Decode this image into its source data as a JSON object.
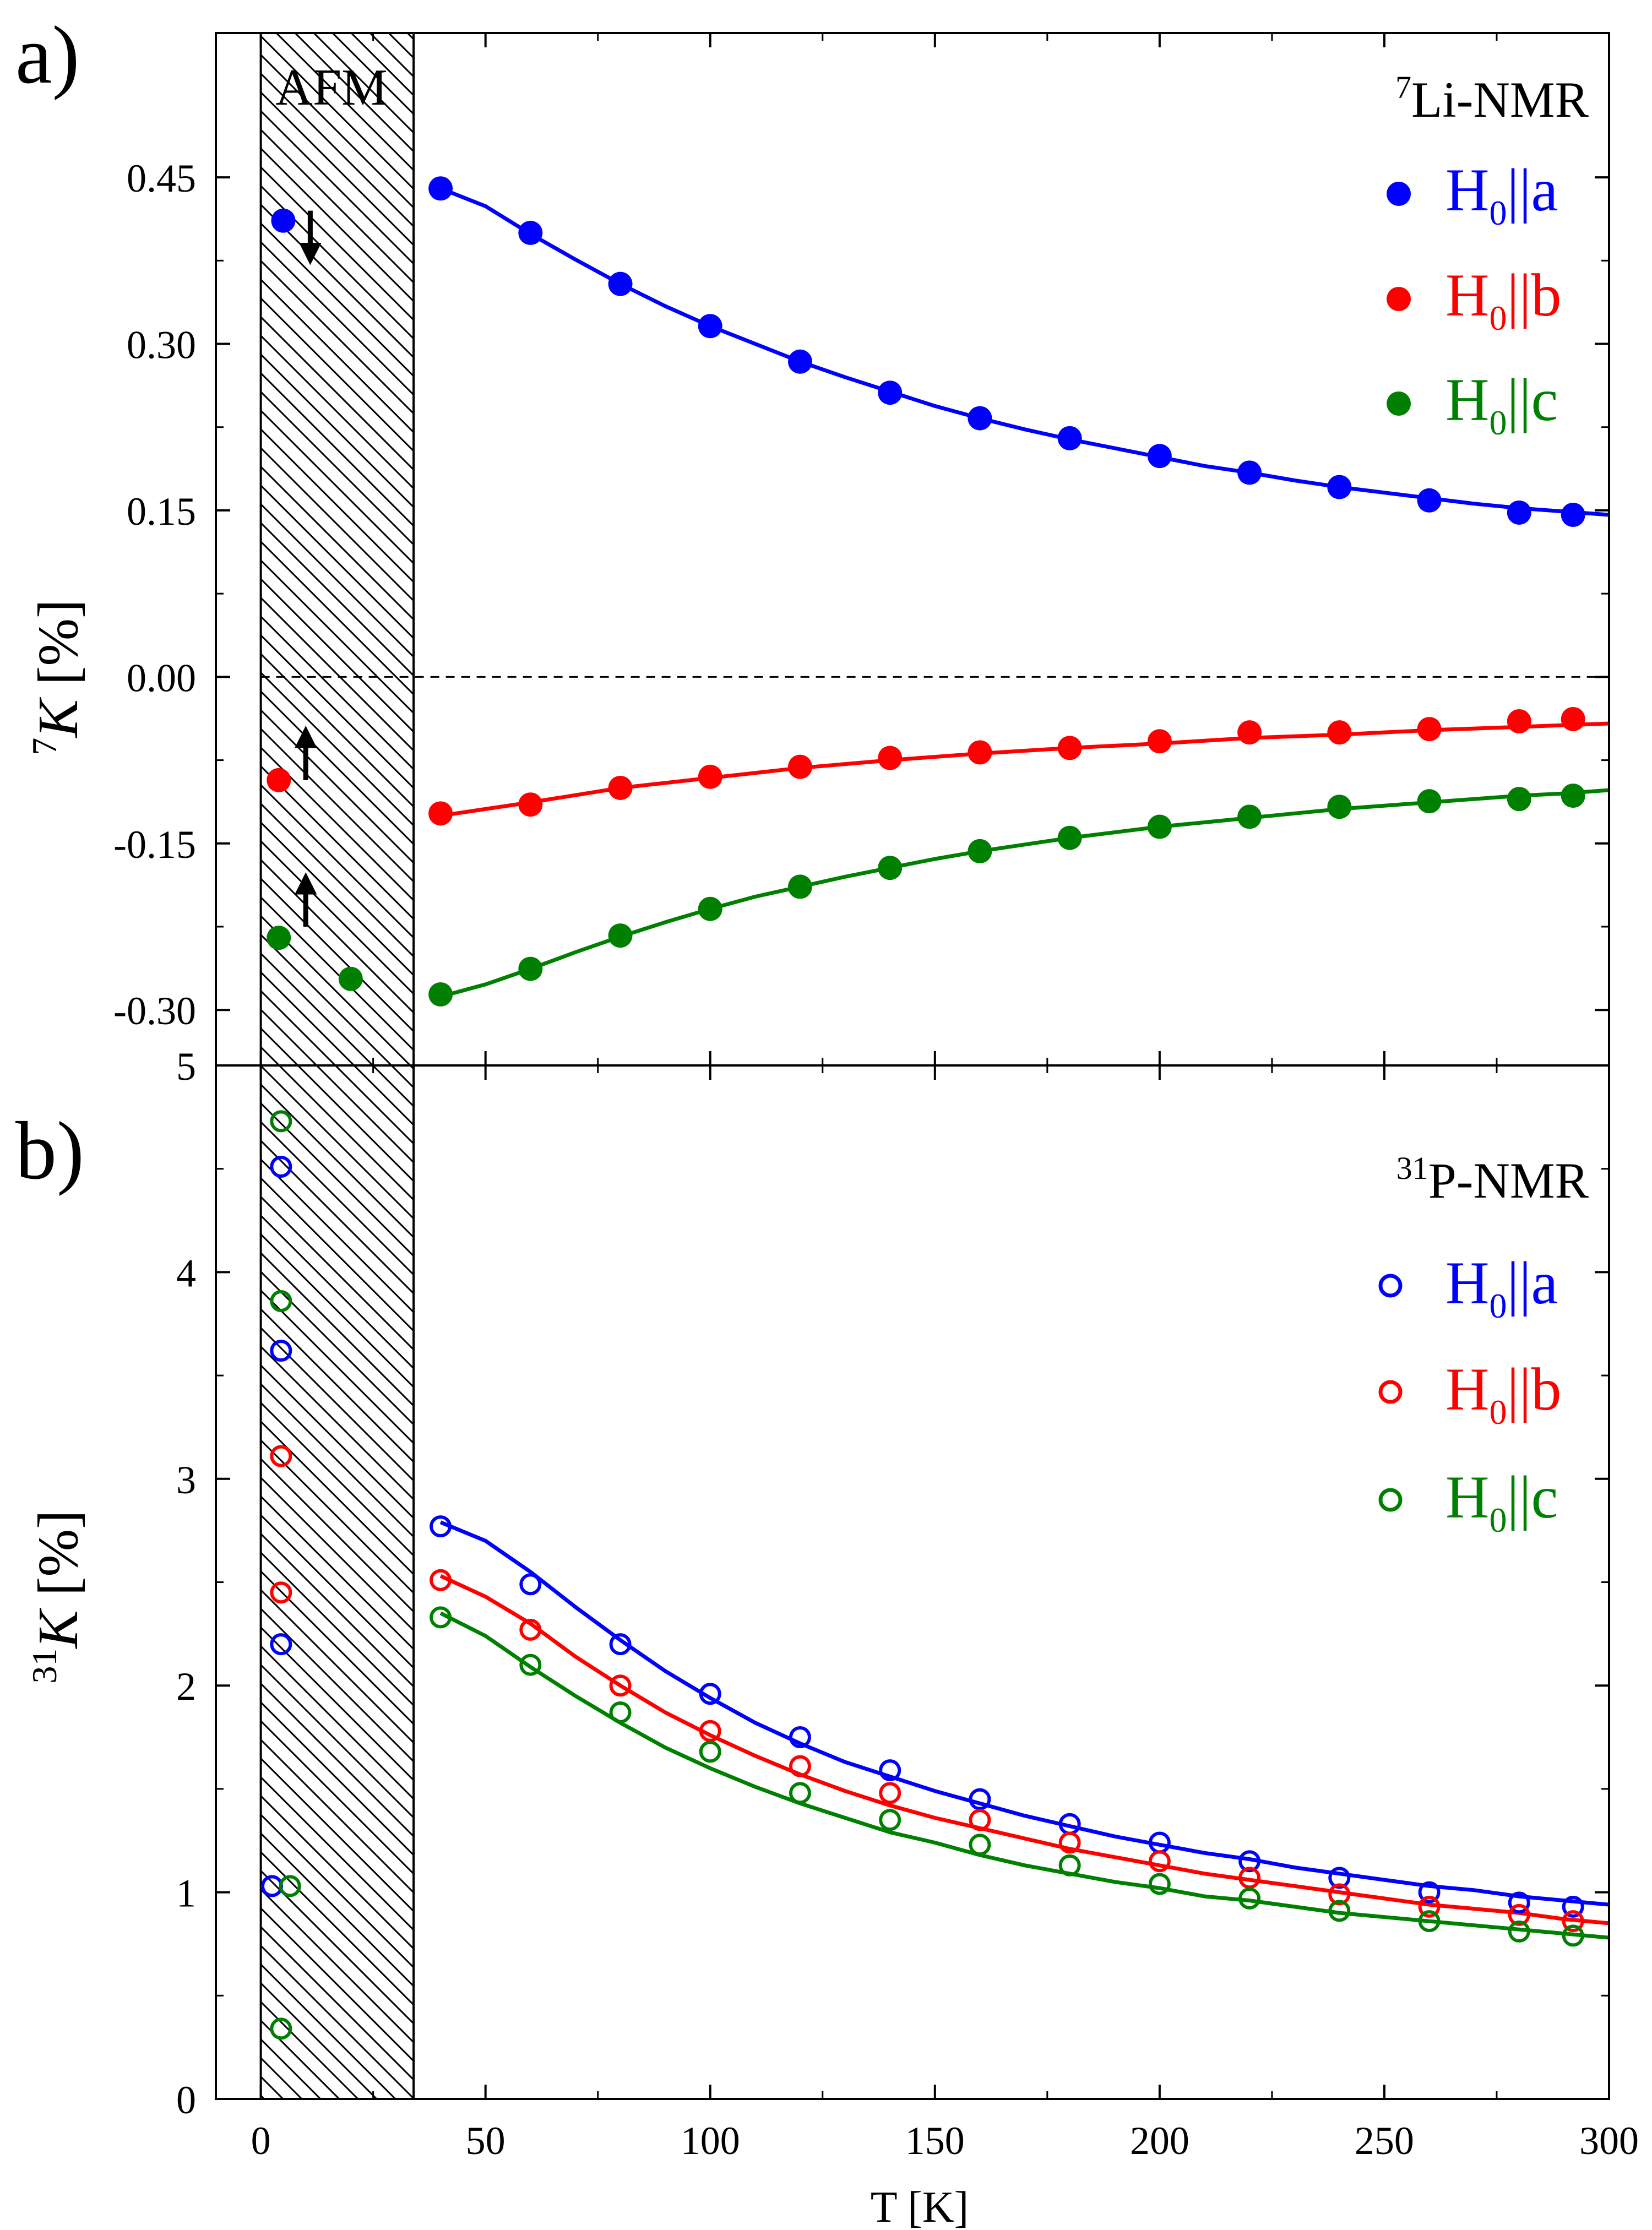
{
  "chart_data": [
    {
      "panel_label": "a)",
      "type": "scatter",
      "title": "Li-NMR",
      "title_sup": "7",
      "xlabel": "",
      "ylabel_sup": "7",
      "ylabel_var": "K",
      "ylabel_unit": " [%]",
      "xlim": [
        -10,
        300
      ],
      "ylim": [
        -0.35,
        0.58
      ],
      "yticks": [
        -0.3,
        -0.15,
        0.0,
        0.15,
        0.3,
        0.45
      ],
      "ytick_labels": [
        "-0.30",
        "-0.15",
        "0.00",
        "0.15",
        "0.30",
        "0.45"
      ],
      "shaded_region": {
        "x": [
          0,
          34
        ],
        "label": "AFM"
      },
      "zero_line": true,
      "marker": "filled",
      "series": [
        {
          "name": "H",
          "name_sub": "0",
          "name_suffix": "||a",
          "color": "#0000ff",
          "x": [
            5,
            40,
            60,
            80,
            100,
            120,
            140,
            160,
            180,
            200,
            220,
            240,
            260,
            280,
            292
          ],
          "y": [
            0.411,
            0.44,
            0.4,
            0.354,
            0.316,
            0.284,
            0.256,
            0.233,
            0.215,
            0.199,
            0.184,
            0.171,
            0.159,
            0.148,
            0.146
          ],
          "fit_x": [
            40,
            50,
            60,
            70,
            80,
            90,
            100,
            110,
            120,
            130,
            140,
            150,
            160,
            170,
            180,
            190,
            200,
            210,
            220,
            230,
            240,
            250,
            260,
            270,
            280,
            290,
            300
          ],
          "fit_y": [
            0.44,
            0.424,
            0.399,
            0.376,
            0.354,
            0.334,
            0.316,
            0.3,
            0.284,
            0.27,
            0.257,
            0.244,
            0.233,
            0.223,
            0.214,
            0.206,
            0.198,
            0.19,
            0.184,
            0.177,
            0.171,
            0.166,
            0.161,
            0.156,
            0.152,
            0.149,
            0.146
          ]
        },
        {
          "name": "H",
          "name_sub": "0",
          "name_suffix": "||b",
          "color": "#ff0000",
          "x": [
            4,
            40,
            60,
            80,
            100,
            120,
            140,
            160,
            180,
            200,
            220,
            240,
            260,
            280,
            292
          ],
          "y": [
            -0.093,
            -0.123,
            -0.115,
            -0.1,
            -0.09,
            -0.081,
            -0.073,
            -0.068,
            -0.064,
            -0.058,
            -0.05,
            -0.05,
            -0.047,
            -0.04,
            -0.038
          ],
          "fit_x": [
            40,
            60,
            80,
            100,
            120,
            140,
            160,
            180,
            200,
            220,
            240,
            260,
            280,
            300
          ],
          "fit_y": [
            -0.125,
            -0.113,
            -0.1,
            -0.091,
            -0.082,
            -0.075,
            -0.069,
            -0.064,
            -0.06,
            -0.055,
            -0.052,
            -0.048,
            -0.045,
            -0.042
          ]
        },
        {
          "name": "H",
          "name_sub": "0",
          "name_suffix": "||c",
          "color": "#008000",
          "x": [
            4,
            20,
            40,
            60,
            80,
            100,
            120,
            140,
            160,
            180,
            200,
            220,
            240,
            260,
            280,
            292
          ],
          "y": [
            -0.235,
            -0.272,
            -0.286,
            -0.263,
            -0.233,
            -0.209,
            -0.189,
            -0.172,
            -0.157,
            -0.145,
            -0.135,
            -0.126,
            -0.117,
            -0.112,
            -0.11,
            -0.107
          ],
          "fit_x": [
            40,
            50,
            60,
            70,
            80,
            90,
            100,
            110,
            120,
            130,
            140,
            150,
            160,
            170,
            180,
            190,
            200,
            210,
            220,
            230,
            240,
            250,
            260,
            270,
            280,
            290,
            300
          ],
          "fit_y": [
            -0.288,
            -0.277,
            -0.263,
            -0.248,
            -0.234,
            -0.221,
            -0.209,
            -0.198,
            -0.189,
            -0.18,
            -0.172,
            -0.164,
            -0.157,
            -0.151,
            -0.145,
            -0.14,
            -0.135,
            -0.131,
            -0.127,
            -0.123,
            -0.119,
            -0.116,
            -0.113,
            -0.11,
            -0.107,
            -0.105,
            -0.102
          ]
        }
      ],
      "arrows": [
        {
          "x": 11,
          "y_from": 0.42,
          "y_to": 0.375,
          "direction": "down"
        },
        {
          "x": 10,
          "y_from": -0.093,
          "y_to": -0.048,
          "direction": "up"
        },
        {
          "x": 10,
          "y_from": -0.225,
          "y_to": -0.18,
          "direction": "up"
        }
      ]
    },
    {
      "panel_label": "b)",
      "type": "scatter",
      "title": "P-NMR",
      "title_sup": "31",
      "xlabel": "T [K]",
      "ylabel_sup": "31",
      "ylabel_var": "K",
      "ylabel_unit": " [%]",
      "xlim": [
        -10,
        300
      ],
      "ylim": [
        0,
        5
      ],
      "xticks": [
        0,
        50,
        100,
        150,
        200,
        250,
        300
      ],
      "xtick_labels": [
        "0",
        "50",
        "100",
        "150",
        "200",
        "250",
        "300"
      ],
      "yticks": [
        0,
        1,
        2,
        3,
        4,
        5
      ],
      "ytick_labels": [
        "0",
        "1",
        "2",
        "3",
        "4",
        "5"
      ],
      "shaded_region": {
        "x": [
          0,
          34
        ],
        "label": ""
      },
      "marker": "open",
      "series": [
        {
          "name": "H",
          "name_sub": "0",
          "name_suffix": "||a",
          "color": "#0000ff",
          "x": [
            2.5,
            4.5,
            4.5,
            4.5,
            40,
            60,
            80,
            100,
            120,
            140,
            160,
            180,
            200,
            220,
            240,
            260,
            280,
            292
          ],
          "y": [
            1.03,
            2.2,
            3.62,
            4.51,
            2.77,
            2.49,
            2.2,
            1.96,
            1.75,
            1.59,
            1.45,
            1.33,
            1.24,
            1.15,
            1.07,
            1.0,
            0.95,
            0.93
          ],
          "fit_x": [
            40,
            50,
            60,
            70,
            80,
            90,
            100,
            110,
            120,
            130,
            140,
            150,
            160,
            170,
            180,
            190,
            200,
            210,
            220,
            230,
            240,
            250,
            260,
            270,
            280,
            290,
            300
          ],
          "fit_y": [
            2.79,
            2.7,
            2.55,
            2.38,
            2.22,
            2.07,
            1.94,
            1.82,
            1.72,
            1.63,
            1.56,
            1.49,
            1.43,
            1.37,
            1.32,
            1.27,
            1.23,
            1.19,
            1.16,
            1.12,
            1.09,
            1.06,
            1.03,
            1.01,
            0.98,
            0.96,
            0.94
          ]
        },
        {
          "name": "H",
          "name_sub": "0",
          "name_suffix": "||b",
          "color": "#ff0000",
          "x": [
            4.5,
            4.5,
            40,
            60,
            80,
            100,
            120,
            140,
            160,
            180,
            200,
            220,
            240,
            260,
            280,
            292
          ],
          "y": [
            2.45,
            3.11,
            2.51,
            2.27,
            2.0,
            1.78,
            1.61,
            1.48,
            1.35,
            1.24,
            1.15,
            1.07,
            0.99,
            0.93,
            0.89,
            0.86
          ],
          "fit_x": [
            40,
            50,
            60,
            70,
            80,
            90,
            100,
            110,
            120,
            130,
            140,
            150,
            160,
            170,
            180,
            190,
            200,
            210,
            220,
            230,
            240,
            250,
            260,
            270,
            280,
            290,
            300
          ],
          "fit_y": [
            2.53,
            2.43,
            2.3,
            2.14,
            2.0,
            1.87,
            1.76,
            1.66,
            1.57,
            1.49,
            1.42,
            1.36,
            1.31,
            1.26,
            1.21,
            1.17,
            1.13,
            1.09,
            1.06,
            1.03,
            1.0,
            0.97,
            0.94,
            0.92,
            0.9,
            0.87,
            0.85
          ]
        },
        {
          "name": "H",
          "name_sub": "0",
          "name_suffix": "||c",
          "color": "#008000",
          "x": [
            4.5,
            6.5,
            4.5,
            4.5,
            40,
            60,
            80,
            100,
            120,
            140,
            160,
            180,
            200,
            220,
            240,
            260,
            280,
            292
          ],
          "y": [
            0.34,
            1.03,
            3.86,
            4.73,
            2.33,
            2.1,
            1.87,
            1.68,
            1.48,
            1.35,
            1.23,
            1.13,
            1.04,
            0.97,
            0.91,
            0.86,
            0.81,
            0.79
          ],
          "fit_x": [
            40,
            50,
            60,
            70,
            80,
            90,
            100,
            110,
            120,
            130,
            140,
            150,
            160,
            170,
            180,
            190,
            200,
            210,
            220,
            230,
            240,
            250,
            260,
            270,
            280,
            290,
            300
          ],
          "fit_y": [
            2.35,
            2.24,
            2.09,
            1.95,
            1.82,
            1.7,
            1.6,
            1.51,
            1.43,
            1.36,
            1.29,
            1.24,
            1.18,
            1.13,
            1.09,
            1.05,
            1.02,
            0.98,
            0.96,
            0.93,
            0.9,
            0.88,
            0.86,
            0.84,
            0.82,
            0.8,
            0.78
          ]
        }
      ]
    }
  ]
}
